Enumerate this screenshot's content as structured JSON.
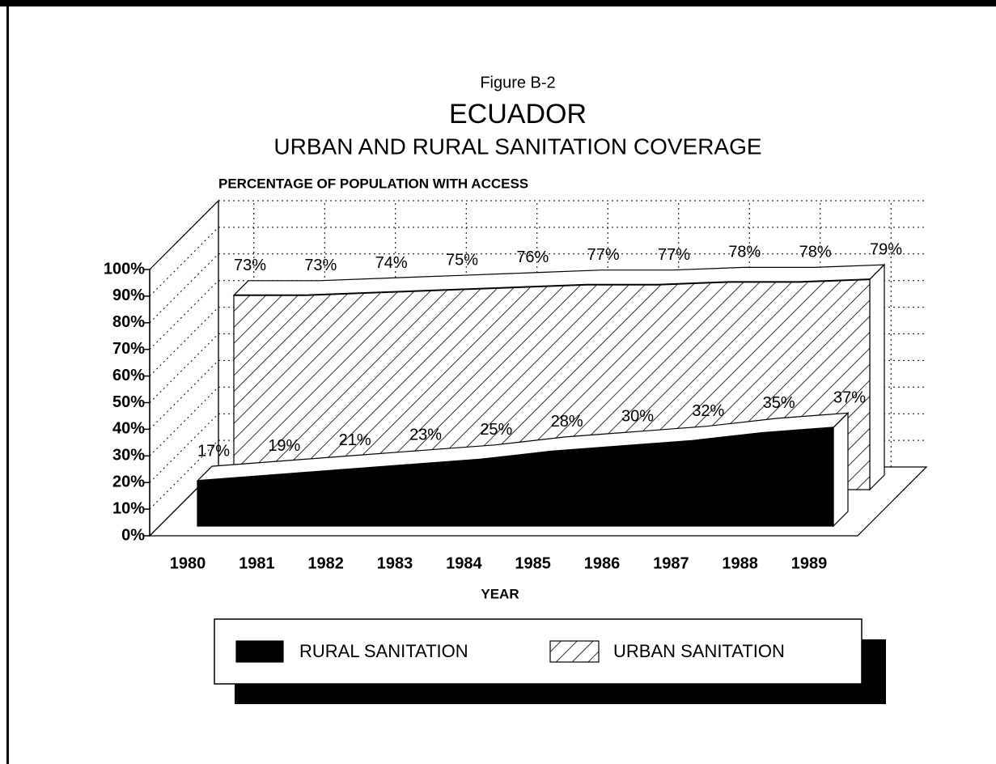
{
  "chart_data": {
    "type": "area3d",
    "caption": "Figure B-2",
    "title": "ECUADOR",
    "subtitle": "URBAN AND RURAL SANITATION COVERAGE",
    "y_label": "PERCENTAGE OF POPULATION WITH ACCESS",
    "x_label": "YEAR",
    "categories": [
      "1980",
      "1981",
      "1982",
      "1983",
      "1984",
      "1985",
      "1986",
      "1987",
      "1988",
      "1989"
    ],
    "series": [
      {
        "name": "RURAL SANITATION",
        "color": "#000000",
        "pattern": "solid",
        "values": [
          17,
          19,
          21,
          23,
          25,
          28,
          30,
          32,
          35,
          37
        ],
        "value_labels": [
          "17%",
          "19%",
          "21%",
          "23%",
          "25%",
          "28%",
          "30%",
          "32%",
          "35%",
          "37%"
        ]
      },
      {
        "name": "URBAN SANITATION",
        "color": "#ffffff",
        "pattern": "hatch",
        "values": [
          73,
          73,
          74,
          75,
          76,
          77,
          77,
          78,
          78,
          79
        ],
        "value_labels": [
          "73%",
          "73%",
          "74%",
          "75%",
          "76%",
          "77%",
          "77%",
          "78%",
          "78%",
          "79%"
        ]
      }
    ],
    "ylim": [
      0,
      100
    ],
    "yticks": [
      {
        "value": 0,
        "label": "0%"
      },
      {
        "value": 10,
        "label": "10%"
      },
      {
        "value": 20,
        "label": "20%"
      },
      {
        "value": 30,
        "label": "30%"
      },
      {
        "value": 40,
        "label": "40%"
      },
      {
        "value": 50,
        "label": "50%"
      },
      {
        "value": 60,
        "label": "60%"
      },
      {
        "value": 70,
        "label": "70%"
      },
      {
        "value": 80,
        "label": "80%"
      },
      {
        "value": 90,
        "label": "90%"
      },
      {
        "value": 100,
        "label": "100%"
      }
    ],
    "grid": true,
    "legend": "bottom"
  }
}
